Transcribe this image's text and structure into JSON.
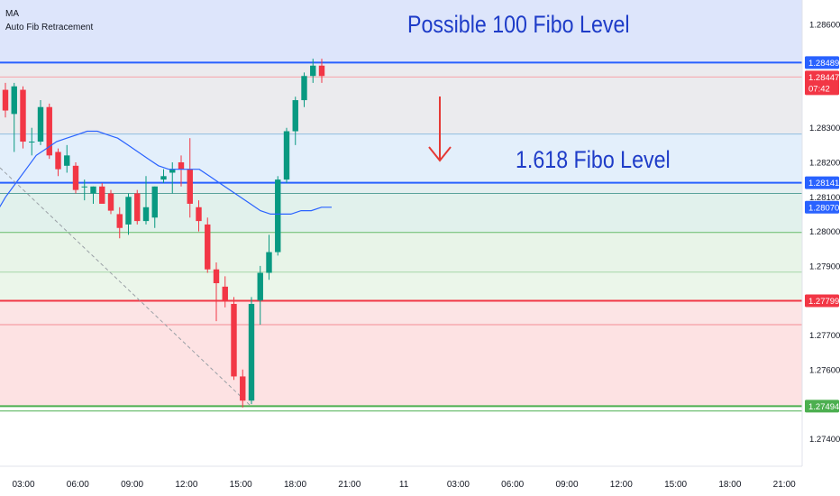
{
  "legend": {
    "indicator_1": "MA",
    "indicator_2": "Auto Fib Retracement"
  },
  "annotations": {
    "top": "Possible 100 Fibo Level",
    "mid": "1.618 Fibo Level"
  },
  "colors": {
    "up": "#089981",
    "down": "#f23645",
    "ma": "#2962ff",
    "price_line": "#2962ff",
    "red_line": "#f23645",
    "green_line": "#4caf50",
    "annotation_text": "#1e3cc8",
    "arrow": "#e53935"
  },
  "chart_data": {
    "type": "candlestick",
    "title": "",
    "xlabel": "",
    "ylabel": "",
    "ylim": [
      1.2732,
      1.2867
    ],
    "x_ticks": [
      "03:00",
      "06:00",
      "09:00",
      "12:00",
      "15:00",
      "18:00",
      "21:00",
      "11",
      "03:00",
      "06:00",
      "09:00",
      "12:00",
      "15:00",
      "18:00",
      "21:00"
    ],
    "y_ticks": [
      1.286,
      1.283,
      1.282,
      1.281,
      1.28,
      1.279,
      1.277,
      1.276,
      1.274
    ],
    "y_tick_labels": [
      "1.28600",
      "1.28300",
      "1.28200",
      "1.28100",
      "1.28000",
      "1.27900",
      "1.27700",
      "1.27600",
      "1.27400"
    ],
    "price_labels": [
      {
        "value": 1.28489,
        "label": "1.28489",
        "color": "#2962ff"
      },
      {
        "value": 1.28447,
        "label": "1.28447",
        "sub": "07:42",
        "color": "#f23645"
      },
      {
        "value": 1.28141,
        "label": "1.28141",
        "color": "#2962ff"
      },
      {
        "value": 1.2807,
        "label": "1.28070",
        "color": "#2962ff"
      },
      {
        "value": 1.27799,
        "label": "1.27799",
        "color": "#f23645"
      },
      {
        "value": 1.27494,
        "label": "1.27494",
        "color": "#4caf50"
      }
    ],
    "fib_zones": [
      {
        "from": 1.28489,
        "to": 1.2867,
        "color": "#dde5fb"
      },
      {
        "from": 1.28282,
        "to": 1.28489,
        "color": "#ebebee"
      },
      {
        "from": 1.28141,
        "to": 1.28282,
        "color": "#e3effb"
      },
      {
        "from": 1.2811,
        "to": 1.28141,
        "color": "#e3efef"
      },
      {
        "from": 1.27997,
        "to": 1.2811,
        "color": "#e1f1ec"
      },
      {
        "from": 1.27882,
        "to": 1.27997,
        "color": "#e8f4e8"
      },
      {
        "from": 1.27799,
        "to": 1.27882,
        "color": "#ebf6ea"
      },
      {
        "from": 1.2773,
        "to": 1.27799,
        "color": "#fce4e5"
      },
      {
        "from": 1.27494,
        "to": 1.2773,
        "color": "#fde2e3"
      }
    ],
    "fib_lines": [
      {
        "value": 1.28489,
        "color": "#2962ff",
        "width": 2
      },
      {
        "value": 1.28447,
        "color": "#f7a3a9",
        "width": 1
      },
      {
        "value": 1.28282,
        "color": "#90bfe0",
        "width": 1
      },
      {
        "value": 1.28141,
        "color": "#2962ff",
        "width": 2
      },
      {
        "value": 1.2811,
        "color": "#5aa39b",
        "width": 1
      },
      {
        "value": 1.27997,
        "color": "#66bb6a",
        "width": 1
      },
      {
        "value": 1.27882,
        "color": "#a5d6a7",
        "width": 1
      },
      {
        "value": 1.27799,
        "color": "#f23645",
        "width": 2
      },
      {
        "value": 1.2773,
        "color": "#f48c94",
        "width": 1
      },
      {
        "value": 1.27494,
        "color": "#4caf50",
        "width": 2
      },
      {
        "value": 1.2748,
        "color": "#4caf50",
        "width": 1
      }
    ],
    "candles": [
      {
        "o": 1.2841,
        "h": 1.2843,
        "l": 1.2833,
        "c": 1.2835
      },
      {
        "o": 1.2834,
        "h": 1.2843,
        "l": 1.2823,
        "c": 1.2842
      },
      {
        "o": 1.2841,
        "h": 1.2842,
        "l": 1.2824,
        "c": 1.2826
      },
      {
        "o": 1.2826,
        "h": 1.283,
        "l": 1.2822,
        "c": 1.2826
      },
      {
        "o": 1.2826,
        "h": 1.2838,
        "l": 1.2825,
        "c": 1.2836
      },
      {
        "o": 1.2836,
        "h": 1.2837,
        "l": 1.2821,
        "c": 1.2822
      },
      {
        "o": 1.2823,
        "h": 1.2824,
        "l": 1.2816,
        "c": 1.2818
      },
      {
        "o": 1.2819,
        "h": 1.2825,
        "l": 1.2817,
        "c": 1.2822
      },
      {
        "o": 1.2819,
        "h": 1.282,
        "l": 1.2811,
        "c": 1.2812
      },
      {
        "o": 1.2813,
        "h": 1.2815,
        "l": 1.2809,
        "c": 1.2813
      },
      {
        "o": 1.2811,
        "h": 1.2813,
        "l": 1.2808,
        "c": 1.2813
      },
      {
        "o": 1.2813,
        "h": 1.2814,
        "l": 1.2809,
        "c": 1.2808
      },
      {
        "o": 1.2811,
        "h": 1.2812,
        "l": 1.2805,
        "c": 1.2806
      },
      {
        "o": 1.2805,
        "h": 1.2807,
        "l": 1.2798,
        "c": 1.2801
      },
      {
        "o": 1.2802,
        "h": 1.2811,
        "l": 1.2799,
        "c": 1.281
      },
      {
        "o": 1.2811,
        "h": 1.2812,
        "l": 1.2802,
        "c": 1.2803
      },
      {
        "o": 1.2803,
        "h": 1.2816,
        "l": 1.2802,
        "c": 1.2807
      },
      {
        "o": 1.2804,
        "h": 1.2813,
        "l": 1.2801,
        "c": 1.2813
      },
      {
        "o": 1.2815,
        "h": 1.2818,
        "l": 1.2814,
        "c": 1.2816
      },
      {
        "o": 1.2817,
        "h": 1.282,
        "l": 1.2811,
        "c": 1.2818
      },
      {
        "o": 1.282,
        "h": 1.2822,
        "l": 1.2813,
        "c": 1.2818
      },
      {
        "o": 1.2818,
        "h": 1.2827,
        "l": 1.2804,
        "c": 1.2808
      },
      {
        "o": 1.2807,
        "h": 1.2809,
        "l": 1.28,
        "c": 1.2803
      },
      {
        "o": 1.2802,
        "h": 1.2804,
        "l": 1.2788,
        "c": 1.2789
      },
      {
        "o": 1.2789,
        "h": 1.2791,
        "l": 1.2774,
        "c": 1.2785
      },
      {
        "o": 1.2784,
        "h": 1.2787,
        "l": 1.2778,
        "c": 1.278
      },
      {
        "o": 1.2779,
        "h": 1.2781,
        "l": 1.2757,
        "c": 1.2758
      },
      {
        "o": 1.2758,
        "h": 1.276,
        "l": 1.2749,
        "c": 1.2751
      },
      {
        "o": 1.2751,
        "h": 1.2781,
        "l": 1.275,
        "c": 1.2779
      },
      {
        "o": 1.278,
        "h": 1.279,
        "l": 1.2773,
        "c": 1.2788
      },
      {
        "o": 1.2788,
        "h": 1.2799,
        "l": 1.2786,
        "c": 1.2794
      },
      {
        "o": 1.2794,
        "h": 1.2816,
        "l": 1.2793,
        "c": 1.2815
      },
      {
        "o": 1.2815,
        "h": 1.283,
        "l": 1.2814,
        "c": 1.2829
      },
      {
        "o": 1.2829,
        "h": 1.2839,
        "l": 1.2825,
        "c": 1.2838
      },
      {
        "o": 1.2838,
        "h": 1.2846,
        "l": 1.2836,
        "c": 1.2845
      },
      {
        "o": 1.2845,
        "h": 1.285,
        "l": 1.2843,
        "c": 1.2848
      },
      {
        "o": 1.2848,
        "h": 1.285,
        "l": 1.2843,
        "c": 1.2845
      }
    ],
    "ma": [
      1.2805,
      1.281,
      1.2814,
      1.2818,
      1.2822,
      1.2824,
      1.2826,
      1.2827,
      1.2828,
      1.2829,
      1.2829,
      1.2828,
      1.2827,
      1.2825,
      1.2823,
      1.2821,
      1.2819,
      1.2818,
      1.2818,
      1.2818,
      1.2818,
      1.2816,
      1.2814,
      1.2812,
      1.281,
      1.2808,
      1.2806,
      1.2805,
      1.2805,
      1.2805,
      1.2806,
      1.2806,
      1.2807,
      1.2807
    ]
  }
}
